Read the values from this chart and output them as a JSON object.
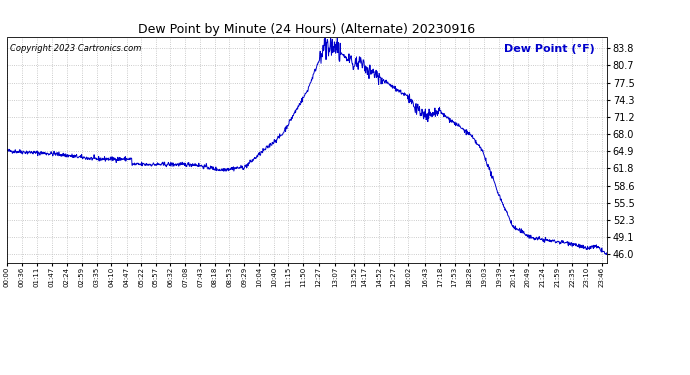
{
  "title": "Dew Point by Minute (24 Hours) (Alternate) 20230916",
  "copyright_text": "Copyright 2023 Cartronics.com",
  "legend_label": "Dew Point (°F)",
  "legend_color": "#0000cc",
  "line_color": "#0000cc",
  "background_color": "#ffffff",
  "grid_color": "#bbbbbb",
  "yticks": [
    46.0,
    49.1,
    52.3,
    55.5,
    58.6,
    61.8,
    64.9,
    68.0,
    71.2,
    74.3,
    77.5,
    80.7,
    83.8
  ],
  "ymin": 44.5,
  "ymax": 85.8,
  "xtick_labels": [
    "00:00",
    "00:36",
    "01:11",
    "01:47",
    "02:24",
    "02:59",
    "03:35",
    "04:10",
    "04:47",
    "05:22",
    "05:57",
    "06:32",
    "07:08",
    "07:43",
    "08:18",
    "08:53",
    "09:29",
    "10:04",
    "10:40",
    "11:15",
    "11:50",
    "12:27",
    "13:07",
    "13:52",
    "14:17",
    "14:52",
    "15:27",
    "16:02",
    "16:43",
    "17:18",
    "17:53",
    "18:28",
    "19:03",
    "19:39",
    "20:14",
    "20:49",
    "21:24",
    "21:59",
    "22:35",
    "23:10",
    "23:46"
  ],
  "title_fontsize": 9,
  "copyright_fontsize": 6,
  "ytick_fontsize": 7,
  "xtick_fontsize": 5
}
